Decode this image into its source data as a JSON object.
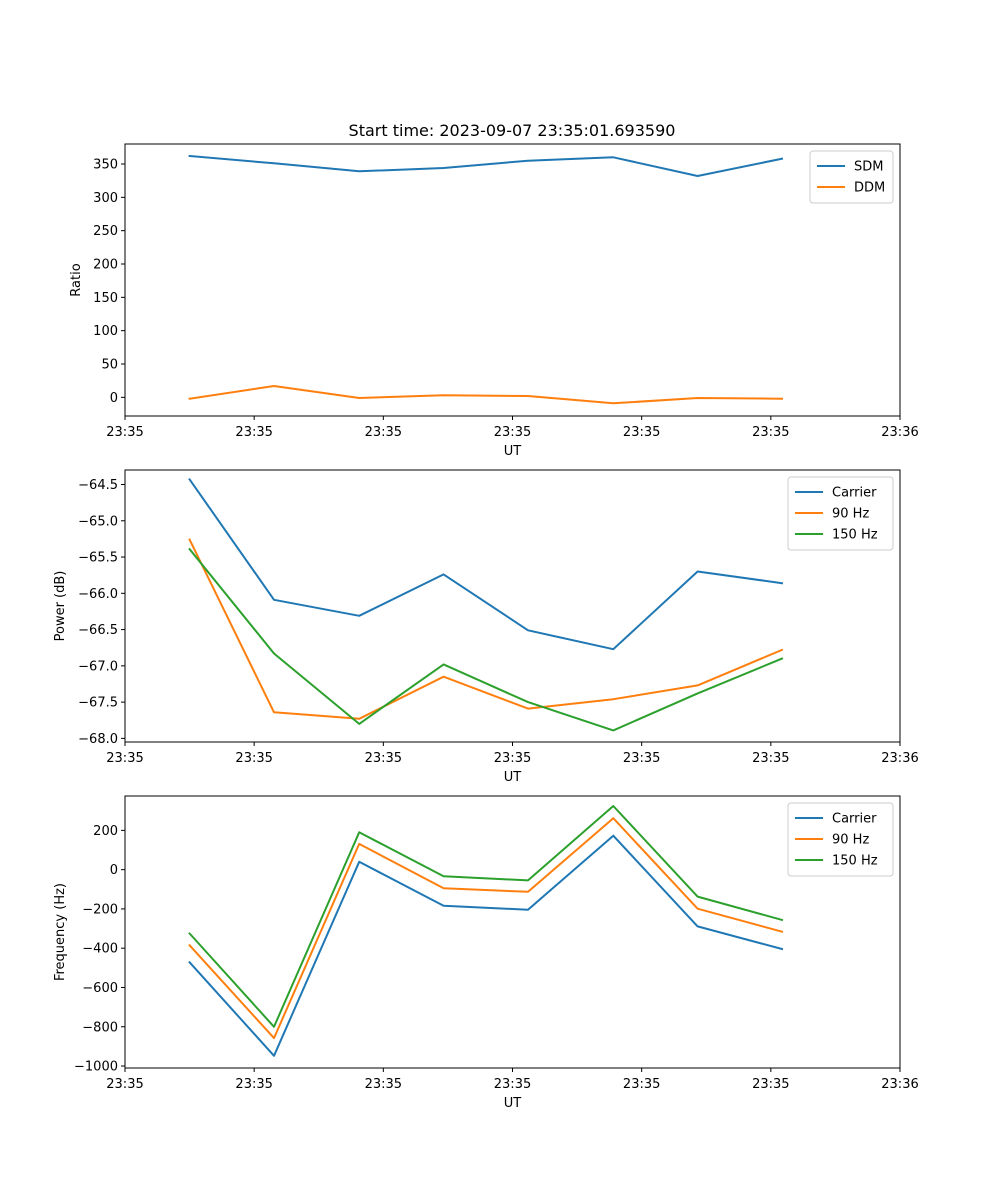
{
  "figure_title": "Start time: 2023-09-07 23:35:01.693590",
  "chart_data": [
    {
      "type": "line",
      "title": "Start time: 2023-09-07 23:35:01.693590",
      "xlabel": "UT",
      "ylabel": "Ratio",
      "xlim": [
        0,
        9
      ],
      "ylim": [
        -28,
        380
      ],
      "x_ticks": [
        0,
        1.5,
        3,
        4.5,
        6,
        7.5,
        9
      ],
      "x_tick_labels": [
        "23:35",
        "23:35",
        "23:35",
        "23:35",
        "23:35",
        "23:35",
        "23:36"
      ],
      "y_ticks": [
        0,
        50,
        100,
        150,
        200,
        250,
        300,
        350
      ],
      "y_tick_labels": [
        "0",
        "50",
        "100",
        "150",
        "200",
        "250",
        "300",
        "350"
      ],
      "legend_position": "top-right",
      "grid": false,
      "x": [
        0.75,
        1.73,
        2.72,
        3.7,
        4.68,
        5.67,
        6.65,
        7.63
      ],
      "series": [
        {
          "name": "SDM",
          "color": "#1f77b4",
          "values": [
            362,
            351,
            339,
            344,
            355,
            360,
            332,
            358
          ]
        },
        {
          "name": "DDM",
          "color": "#ff7f0e",
          "values": [
            -2,
            17,
            -1,
            3,
            2,
            -9,
            -1,
            -2
          ]
        }
      ]
    },
    {
      "type": "line",
      "title": "",
      "xlabel": "UT",
      "ylabel": "Power (dB)",
      "xlim": [
        0,
        9
      ],
      "ylim": [
        -68.05,
        -64.3
      ],
      "x_ticks": [
        0,
        1.5,
        3,
        4.5,
        6,
        7.5,
        9
      ],
      "x_tick_labels": [
        "23:35",
        "23:35",
        "23:35",
        "23:35",
        "23:35",
        "23:35",
        "23:36"
      ],
      "y_ticks": [
        -68.0,
        -67.5,
        -67.0,
        -66.5,
        -66.0,
        -65.5,
        -65.0,
        -64.5
      ],
      "y_tick_labels": [
        "−68.0",
        "−67.5",
        "−67.0",
        "−66.5",
        "−66.0",
        "−65.5",
        "−65.0",
        "−64.5"
      ],
      "legend_position": "top-right",
      "grid": false,
      "x": [
        0.75,
        1.73,
        2.72,
        3.7,
        4.68,
        5.67,
        6.65,
        7.63
      ],
      "series": [
        {
          "name": "Carrier",
          "color": "#1f77b4",
          "values": [
            -64.43,
            -66.09,
            -66.31,
            -65.74,
            -66.51,
            -66.77,
            -65.7,
            -65.86
          ]
        },
        {
          "name": "90 Hz",
          "color": "#ff7f0e",
          "values": [
            -65.26,
            -67.64,
            -67.73,
            -67.15,
            -67.59,
            -67.46,
            -67.27,
            -66.78
          ]
        },
        {
          "name": "150 Hz",
          "color": "#2ca02c",
          "values": [
            -65.39,
            -66.83,
            -67.8,
            -66.98,
            -67.5,
            -67.89,
            -67.38,
            -66.9
          ]
        }
      ]
    },
    {
      "type": "line",
      "title": "",
      "xlabel": "UT",
      "ylabel": "Frequency (Hz)",
      "xlim": [
        0,
        9
      ],
      "ylim": [
        -1010,
        375
      ],
      "x_ticks": [
        0,
        1.5,
        3,
        4.5,
        6,
        7.5,
        9
      ],
      "x_tick_labels": [
        "23:35",
        "23:35",
        "23:35",
        "23:35",
        "23:35",
        "23:35",
        "23:36"
      ],
      "y_ticks": [
        -1000,
        -800,
        -600,
        -400,
        -200,
        0,
        200
      ],
      "y_tick_labels": [
        "−1000",
        "−800",
        "−600",
        "−400",
        "−200",
        "0",
        "200"
      ],
      "legend_position": "top-right",
      "grid": false,
      "x": [
        0.75,
        1.73,
        2.72,
        3.7,
        4.68,
        5.67,
        6.65,
        7.63
      ],
      "series": [
        {
          "name": "Carrier",
          "color": "#1f77b4",
          "values": [
            -472,
            -948,
            40,
            -184,
            -204,
            173,
            -289,
            -404
          ]
        },
        {
          "name": "90 Hz",
          "color": "#ff7f0e",
          "values": [
            -385,
            -858,
            131,
            -95,
            -113,
            262,
            -199,
            -316
          ]
        },
        {
          "name": "150 Hz",
          "color": "#2ca02c",
          "values": [
            -325,
            -800,
            190,
            -34,
            -55,
            324,
            -137,
            -256
          ]
        }
      ]
    }
  ]
}
